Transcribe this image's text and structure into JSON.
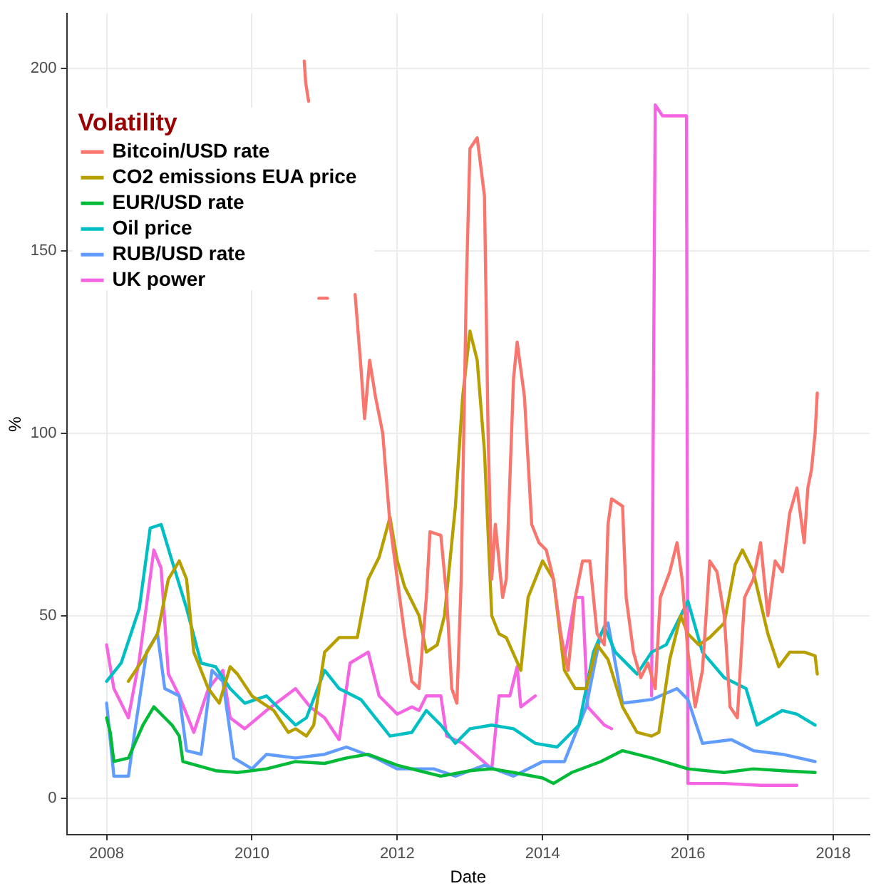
{
  "chart_data": {
    "type": "line",
    "xlabel": "Date",
    "ylabel": "%",
    "legend_title": "Volatility",
    "legend": "top left",
    "grid": true,
    "marker": "none",
    "line_style": "solid",
    "xlim": [
      2007.45,
      2018.5
    ],
    "xticks": [
      2008,
      2010,
      2012,
      2014,
      2016,
      2018
    ],
    "ylim": [
      -10,
      215
    ],
    "yticks": [
      0,
      50,
      100,
      150,
      200
    ],
    "series": [
      {
        "name": "Bitcoin/USD rate",
        "color": "#f8766d",
        "x": [
          2010.72,
          2010.74,
          2010.78,
          2010.85,
          2010.92,
          2011.04,
          2011.2,
          2011.42,
          2011.5,
          2011.55,
          2011.62,
          2011.7,
          2011.8,
          2011.9,
          2012.0,
          2012.1,
          2012.2,
          2012.3,
          2012.4,
          2012.45,
          2012.6,
          2012.68,
          2012.75,
          2012.82,
          2012.88,
          2012.95,
          2013.0,
          2013.1,
          2013.2,
          2013.25,
          2013.3,
          2013.35,
          2013.45,
          2013.5,
          2013.6,
          2013.65,
          2013.75,
          2013.85,
          2013.95,
          2014.05,
          2014.15,
          2014.25,
          2014.35,
          2014.45,
          2014.55,
          2014.65,
          2014.75,
          2014.85,
          2014.9,
          2014.95,
          2015.1,
          2015.15,
          2015.25,
          2015.35,
          2015.45,
          2015.55,
          2015.62,
          2015.75,
          2015.85,
          2015.92,
          2016.0,
          2016.1,
          2016.2,
          2016.3,
          2016.4,
          2016.5,
          2016.58,
          2016.68,
          2016.78,
          2016.9,
          2017.0,
          2017.1,
          2017.2,
          2017.3,
          2017.4,
          2017.5,
          2017.6,
          2017.65,
          2017.7,
          2017.75,
          2017.78
        ],
        "values": [
          202,
          196,
          191,
          null,
          137,
          137,
          null,
          138,
          118,
          104,
          120,
          110,
          100,
          75,
          60,
          45,
          32,
          30,
          55,
          73,
          72,
          55,
          30,
          26,
          60,
          140,
          178,
          181,
          165,
          100,
          60,
          75,
          55,
          60,
          115,
          125,
          110,
          75,
          70,
          68,
          60,
          45,
          35,
          55,
          65,
          65,
          45,
          42,
          75,
          82,
          80,
          55,
          40,
          33,
          37,
          30,
          55,
          62,
          70,
          60,
          40,
          25,
          35,
          65,
          62,
          50,
          25,
          22,
          55,
          60,
          70,
          50,
          65,
          62,
          78,
          85,
          70,
          85,
          90,
          100,
          111
        ]
      },
      {
        "name": "CO2 emissions EUA price",
        "color": "#b79f00",
        "x": [
          2008.3,
          2008.5,
          2008.7,
          2008.85,
          2009.0,
          2009.1,
          2009.2,
          2009.4,
          2009.55,
          2009.7,
          2009.8,
          2010.0,
          2010.3,
          2010.5,
          2010.6,
          2010.75,
          2010.85,
          2011.0,
          2011.2,
          2011.45,
          2011.6,
          2011.75,
          2011.9,
          2012.0,
          2012.1,
          2012.3,
          2012.4,
          2012.55,
          2012.65,
          2012.8,
          2012.9,
          2013.0,
          2013.1,
          2013.2,
          2013.3,
          2013.4,
          2013.5,
          2013.7,
          2013.8,
          2014.0,
          2014.15,
          2014.3,
          2014.45,
          2014.6,
          2014.75,
          2014.9,
          2015.1,
          2015.3,
          2015.5,
          2015.6,
          2015.75,
          2015.9,
          2016.0,
          2016.15,
          2016.3,
          2016.5,
          2016.65,
          2016.75,
          2016.9,
          2017.1,
          2017.25,
          2017.4,
          2017.6,
          2017.75,
          2017.78
        ],
        "values": [
          32,
          38,
          45,
          60,
          65,
          60,
          40,
          30,
          26,
          36,
          34,
          28,
          24,
          18,
          19,
          17,
          20,
          40,
          44,
          44,
          60,
          66,
          77,
          65,
          58,
          50,
          40,
          42,
          50,
          80,
          110,
          128,
          120,
          95,
          50,
          45,
          44,
          35,
          55,
          65,
          60,
          35,
          30,
          30,
          42,
          38,
          25,
          18,
          17,
          18,
          38,
          50,
          45,
          42,
          44,
          48,
          64,
          68,
          62,
          45,
          36,
          40,
          40,
          39,
          34
        ]
      },
      {
        "name": "EUR/USD rate",
        "color": "#00ba38",
        "x": [
          2008.0,
          2008.05,
          2008.1,
          2008.3,
          2008.5,
          2008.65,
          2008.8,
          2008.9,
          2009.0,
          2009.05,
          2009.5,
          2009.8,
          2010.2,
          2010.6,
          2011.0,
          2011.3,
          2011.6,
          2012.0,
          2012.4,
          2012.6,
          2013.0,
          2013.3,
          2013.6,
          2014.0,
          2014.15,
          2014.4,
          2014.8,
          2015.1,
          2015.5,
          2016.0,
          2016.5,
          2016.9,
          2017.3,
          2017.75
        ],
        "values": [
          22,
          18,
          10,
          11,
          20,
          25,
          22,
          20,
          17,
          10,
          7.5,
          7,
          8,
          10,
          9.5,
          11,
          12,
          9,
          7,
          6,
          7.5,
          8,
          7,
          5.5,
          4,
          7,
          10,
          13,
          11,
          8,
          7,
          8,
          7.5,
          7
        ]
      },
      {
        "name": "Oil price",
        "color": "#00bfc4",
        "x": [
          2008.0,
          2008.2,
          2008.45,
          2008.6,
          2008.75,
          2008.9,
          2009.1,
          2009.3,
          2009.5,
          2009.7,
          2009.9,
          2010.2,
          2010.45,
          2010.6,
          2010.75,
          2011.0,
          2011.2,
          2011.5,
          2011.7,
          2011.9,
          2012.2,
          2012.4,
          2012.6,
          2012.8,
          2013.0,
          2013.3,
          2013.6,
          2013.9,
          2014.2,
          2014.5,
          2014.7,
          2014.85,
          2015.0,
          2015.3,
          2015.5,
          2015.7,
          2015.9,
          2016.0,
          2016.2,
          2016.5,
          2016.8,
          2016.95,
          2017.3,
          2017.5,
          2017.75
        ],
        "values": [
          32,
          37,
          52,
          74,
          75,
          65,
          52,
          37,
          36,
          30,
          26,
          28,
          23,
          20,
          22,
          35,
          30,
          27,
          22,
          17,
          18,
          24,
          20,
          15,
          19,
          20,
          19,
          15,
          14,
          20,
          40,
          47,
          40,
          34,
          40,
          42,
          50,
          54,
          40,
          33,
          30,
          20,
          24,
          23,
          20
        ]
      },
      {
        "name": "RUB/USD rate",
        "color": "#619cff",
        "x": [
          2008.0,
          2008.1,
          2008.3,
          2008.4,
          2008.55,
          2008.7,
          2008.8,
          2009.0,
          2009.1,
          2009.3,
          2009.45,
          2009.6,
          2009.75,
          2010.0,
          2010.2,
          2010.6,
          2011.0,
          2011.3,
          2011.7,
          2012.0,
          2012.5,
          2012.8,
          2013.2,
          2013.6,
          2014.0,
          2014.3,
          2014.6,
          2014.8,
          2014.9,
          2015.1,
          2015.5,
          2015.85,
          2016.0,
          2016.2,
          2016.6,
          2016.9,
          2017.3,
          2017.75
        ],
        "values": [
          26,
          6,
          6,
          20,
          40,
          45,
          30,
          28,
          13,
          12,
          35,
          32,
          11,
          8,
          12,
          11,
          12,
          14,
          11,
          8,
          8,
          6,
          9,
          6,
          10,
          10,
          25,
          45,
          48,
          26,
          27,
          30,
          27,
          15,
          16,
          13,
          12,
          10
        ]
      },
      {
        "name": "UK power",
        "color": "#f564e3",
        "x": [
          2008.0,
          2008.1,
          2008.3,
          2008.45,
          2008.65,
          2008.75,
          2008.85,
          2009.0,
          2009.2,
          2009.4,
          2009.6,
          2009.7,
          2009.9,
          2010.2,
          2010.6,
          2010.8,
          2011.0,
          2011.2,
          2011.35,
          2011.6,
          2011.75,
          2012.0,
          2012.2,
          2012.3,
          2012.4,
          2012.6,
          2012.68,
          2012.9,
          2013.3,
          2013.4,
          2013.55,
          2013.65,
          2013.7,
          2013.9,
          2014.1,
          2014.3,
          2014.45,
          2014.55,
          2014.62,
          2014.85,
          2014.95,
          2015.2,
          2015.5,
          2015.55,
          2015.65,
          2015.98,
          2016.0,
          2016.5,
          2017.0,
          2017.5
        ],
        "values": [
          42,
          30,
          22,
          38,
          68,
          63,
          34,
          28,
          18,
          30,
          35,
          22,
          19,
          24,
          30,
          25,
          22,
          16,
          37,
          40,
          28,
          23,
          25,
          24,
          28,
          28,
          17,
          15,
          8,
          28,
          28,
          36,
          25,
          28,
          null,
          38,
          55,
          55,
          25,
          20,
          19,
          null,
          28,
          190,
          187,
          187,
          4,
          4,
          3.5,
          3.5
        ]
      }
    ]
  }
}
